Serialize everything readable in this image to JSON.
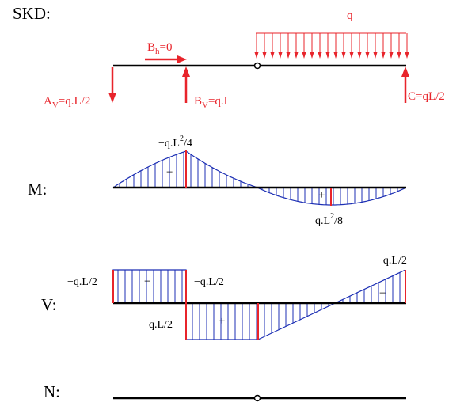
{
  "sections": {
    "skd": "SKD:",
    "moment": "M:",
    "shear": "V:",
    "normal": "N:"
  },
  "loads": {
    "q": "q",
    "bh": "B",
    "bh_sub": "h",
    "bh_val": "=0",
    "av": "A",
    "av_sub": "V",
    "av_val": "=q.L/2",
    "bv": "B",
    "bv_sub": "V",
    "bv_val": "=q.L",
    "c": "C=qL/2"
  },
  "moment_labels": {
    "neg_a": "−q.L",
    "neg_exp": "2",
    "neg_b": "/4",
    "pos_a": "q.L",
    "pos_exp": "2",
    "pos_b": "/8",
    "minus_sign": "−",
    "plus_sign": "+"
  },
  "shear_labels": {
    "left": "−q.L/2",
    "mid_top": "−q.L/2",
    "mid_bottom": "q.L/2",
    "right": "−q.L/2",
    "minus_left": "−",
    "plus_mid": "+",
    "minus_right": "−"
  },
  "colors": {
    "red": "#e8242b",
    "blue": "#1c2fb4",
    "black": "#000000"
  }
}
